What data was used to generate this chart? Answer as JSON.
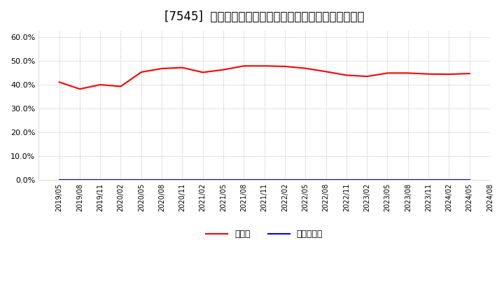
{
  "title": "[7545]  現預金、有利子負債の総資産に対する比率の推移",
  "x_labels": [
    "2019/05",
    "2019/08",
    "2019/11",
    "2020/02",
    "2020/05",
    "2020/08",
    "2020/11",
    "2021/02",
    "2021/05",
    "2021/08",
    "2021/11",
    "2022/02",
    "2022/05",
    "2022/08",
    "2022/11",
    "2023/02",
    "2023/05",
    "2023/08",
    "2023/11",
    "2024/02",
    "2024/05",
    "2024/08"
  ],
  "cash_ratio": [
    0.411,
    0.382,
    0.4,
    0.393,
    0.453,
    0.468,
    0.472,
    0.452,
    0.463,
    0.479,
    0.479,
    0.477,
    0.469,
    0.455,
    0.44,
    0.435,
    0.449,
    0.449,
    0.445,
    0.444,
    0.447,
    null
  ],
  "debt_ratio": [
    0.0,
    0.0,
    0.0,
    0.0,
    0.0,
    0.0,
    0.0,
    0.0,
    0.0,
    0.0,
    0.0,
    0.0,
    0.0,
    0.0,
    0.0,
    0.0,
    0.0,
    0.0,
    0.0,
    0.0,
    0.0,
    null
  ],
  "cash_color": "#FF0000",
  "debt_color": "#0000FF",
  "bg_color": "#ffffff",
  "plot_bg_color": "#ffffff",
  "grid_color": "#aaaaaa",
  "title_fontsize": 12,
  "legend_cash": "現預金",
  "legend_debt": "有利子負債",
  "ylim": [
    0.0,
    0.63
  ],
  "yticks": [
    0.0,
    0.1,
    0.2,
    0.3,
    0.4,
    0.5,
    0.6
  ]
}
